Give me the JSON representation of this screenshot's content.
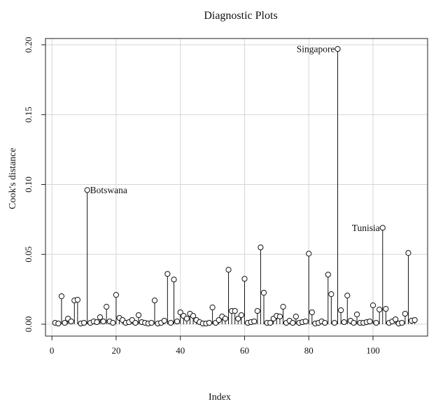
{
  "chart_data": {
    "type": "scatter",
    "title": "Diagnostic Plots",
    "xlabel": "Index",
    "ylabel": "Cook's distance",
    "xlim": [
      -2,
      117
    ],
    "ylim": [
      -0.0085,
      0.2045
    ],
    "xticks": [
      0,
      20,
      40,
      60,
      80,
      100
    ],
    "yticks": [
      0.0,
      0.05,
      0.1,
      0.15,
      0.2
    ],
    "ytick_labels": [
      "0.00",
      "0.05",
      "0.10",
      "0.15",
      "0.20"
    ],
    "grid": true,
    "stems": true,
    "x": [
      1,
      2,
      3,
      4,
      5,
      6,
      7,
      8,
      9,
      10,
      11,
      12,
      13,
      14,
      15,
      16,
      17,
      18,
      19,
      20,
      21,
      22,
      23,
      24,
      25,
      26,
      27,
      28,
      29,
      30,
      31,
      32,
      33,
      34,
      35,
      36,
      37,
      38,
      39,
      40,
      41,
      42,
      43,
      44,
      45,
      46,
      47,
      48,
      49,
      50,
      51,
      52,
      53,
      54,
      55,
      56,
      57,
      58,
      59,
      60,
      61,
      62,
      63,
      64,
      65,
      66,
      67,
      68,
      69,
      70,
      71,
      72,
      73,
      74,
      75,
      76,
      77,
      78,
      79,
      80,
      81,
      82,
      83,
      84,
      85,
      86,
      87,
      88,
      89,
      90,
      91,
      92,
      93,
      94,
      95,
      96,
      97,
      98,
      99,
      100,
      101,
      102,
      103,
      104,
      105,
      106,
      107,
      108,
      109,
      110,
      111,
      112,
      113
    ],
    "y": [
      0.001,
      0.0005,
      0.02,
      0.001,
      0.004,
      0.002,
      0.017,
      0.0175,
      0.0005,
      0.001,
      0.096,
      0.001,
      0.002,
      0.0015,
      0.005,
      0.002,
      0.0125,
      0.002,
      0.001,
      0.021,
      0.0045,
      0.003,
      0.001,
      0.0015,
      0.003,
      0.001,
      0.0065,
      0.0015,
      0.001,
      0.0005,
      0.001,
      0.017,
      0.0005,
      0.001,
      0.0025,
      0.036,
      0.001,
      0.032,
      0.002,
      0.0085,
      0.006,
      0.004,
      0.0075,
      0.006,
      0.003,
      0.0015,
      0.0005,
      0.0005,
      0.001,
      0.012,
      0.001,
      0.003,
      0.0055,
      0.004,
      0.039,
      0.0095,
      0.0095,
      0.004,
      0.0065,
      0.0325,
      0.001,
      0.0015,
      0.002,
      0.0095,
      0.055,
      0.0225,
      0.001,
      0.001,
      0.004,
      0.006,
      0.0055,
      0.0125,
      0.001,
      0.0025,
      0.001,
      0.0055,
      0.001,
      0.0015,
      0.002,
      0.0505,
      0.0085,
      0.0005,
      0.001,
      0.002,
      0.001,
      0.0355,
      0.0215,
      0.001,
      0.197,
      0.01,
      0.0015,
      0.0205,
      0.0025,
      0.001,
      0.007,
      0.001,
      0.001,
      0.0015,
      0.002,
      0.0135,
      0.001,
      0.0105,
      0.069,
      0.011,
      0.001,
      0.002,
      0.0035,
      0.0005,
      0.001,
      0.0075,
      0.051,
      0.0025,
      0.003
    ],
    "annotations": [
      {
        "x": 11,
        "y": 0.096,
        "label": "Botswana",
        "side": "right"
      },
      {
        "x": 89,
        "y": 0.197,
        "label": "Singapore",
        "side": "left"
      },
      {
        "x": 103,
        "y": 0.069,
        "label": "Tunisia",
        "side": "left"
      }
    ]
  }
}
